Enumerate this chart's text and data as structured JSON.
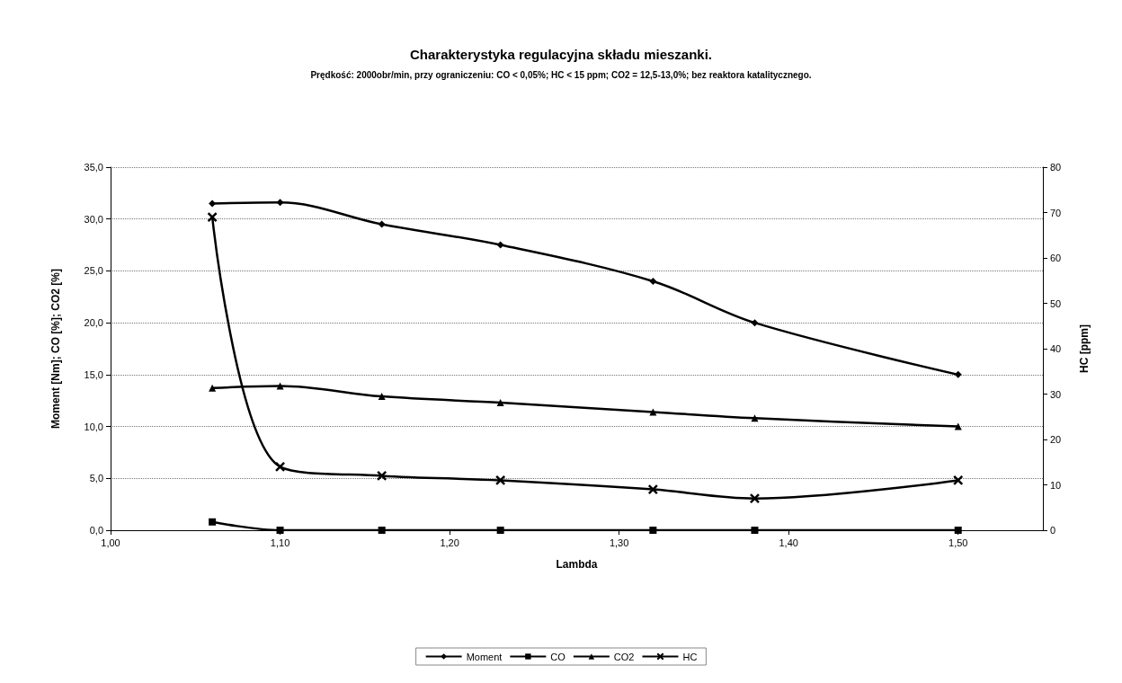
{
  "chart_data": {
    "type": "line",
    "title": "Charakterystyka regulacyjna składu mieszanki.",
    "subtitle": "Prędkość: 2000obr/min, przy ograniczeniu: CO < 0,05%; HC < 15 ppm; CO2 = 12,5-13,0%; bez reaktora katalitycznego.",
    "xlabel": "Lambda",
    "ylabel": "Moment [Nm]; CO [%]; CO2 [%]",
    "y2label": "HC [ppm]",
    "x": [
      1.06,
      1.1,
      1.16,
      1.23,
      1.32,
      1.38,
      1.5
    ],
    "series": [
      {
        "name": "Moment",
        "color": "#000000",
        "marker": "diamond",
        "values": [
          31.5,
          31.6,
          29.5,
          27.5,
          24.0,
          20.0,
          15.0
        ]
      },
      {
        "name": "CO",
        "color": "#000000",
        "marker": "square",
        "values": [
          0.8,
          0,
          0,
          0,
          0,
          0,
          0
        ]
      },
      {
        "name": "CO2",
        "color": "#000000",
        "marker": "triangle",
        "values": [
          13.7,
          13.9,
          12.9,
          12.3,
          11.4,
          10.8,
          10.0
        ]
      },
      {
        "name": "HC",
        "color": "#000000",
        "marker": "cross",
        "axis": "y2",
        "values": [
          69,
          14,
          12,
          11,
          9,
          7,
          11
        ]
      }
    ],
    "xlim": [
      1.0,
      1.55
    ],
    "xticks": [
      {
        "value": 1.0,
        "label": "1,00"
      },
      {
        "value": 1.1,
        "label": "1,10"
      },
      {
        "value": 1.2,
        "label": "1,20"
      },
      {
        "value": 1.3,
        "label": "1,30"
      },
      {
        "value": 1.4,
        "label": "1,40"
      },
      {
        "value": 1.5,
        "label": "1,50"
      }
    ],
    "ylim": [
      0,
      35
    ],
    "yticks": [
      {
        "value": 0,
        "label": "0,0"
      },
      {
        "value": 5,
        "label": "5,0"
      },
      {
        "value": 10,
        "label": "10,0"
      },
      {
        "value": 15,
        "label": "15,0"
      },
      {
        "value": 20,
        "label": "20,0"
      },
      {
        "value": 25,
        "label": "25,0"
      },
      {
        "value": 30,
        "label": "30,0"
      },
      {
        "value": 35,
        "label": "35,0"
      }
    ],
    "y2lim": [
      0,
      80
    ],
    "y2ticks": [
      0,
      10,
      20,
      30,
      40,
      50,
      60,
      70,
      80
    ],
    "grid": "y",
    "legend": "bottom",
    "line_style": "solid"
  }
}
